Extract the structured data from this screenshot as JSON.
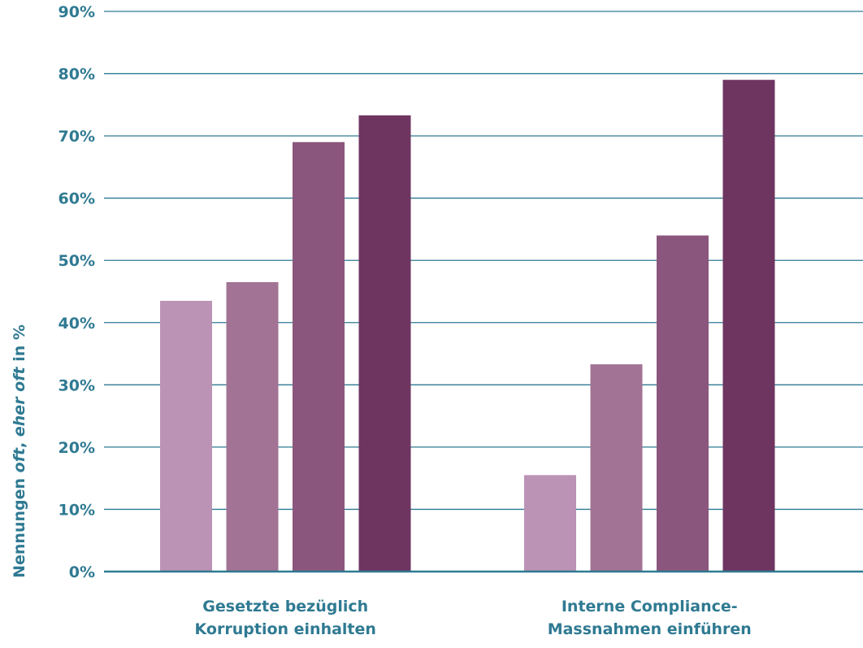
{
  "chart_data": {
    "type": "bar",
    "title": "",
    "xlabel": "",
    "ylabel_parts": [
      {
        "text": "Nennungen ",
        "italic": false
      },
      {
        "text": "oft",
        "italic": true
      },
      {
        "text": ", ",
        "italic": false
      },
      {
        "text": "eher oft",
        "italic": true
      },
      {
        "text": " in %",
        "italic": false
      }
    ],
    "ylim": [
      0,
      90
    ],
    "y_ticks": [
      0,
      10,
      20,
      30,
      40,
      50,
      60,
      70,
      80,
      90
    ],
    "y_tick_labels": [
      "0%",
      "10%",
      "20%",
      "30%",
      "40%",
      "50%",
      "60%",
      "70%",
      "80%",
      "90%"
    ],
    "categories": [
      [
        "Gesetzte bezüglich",
        "Korruption einhalten"
      ],
      [
        "Interne Compliance-",
        "Massnahmen einführen"
      ]
    ],
    "series": [
      {
        "values": [
          43.5,
          15.5
        ]
      },
      {
        "values": [
          46.5,
          33.3
        ]
      },
      {
        "values": [
          69.0,
          54.0
        ]
      },
      {
        "values": [
          73.3,
          79.0
        ]
      }
    ],
    "grid": true,
    "legend": "none",
    "colors": {
      "series": [
        "#bb93b5",
        "#a27395",
        "#8b567d",
        "#6e3561"
      ],
      "grid": "#2f7a92",
      "text": "#2f7a92"
    }
  }
}
